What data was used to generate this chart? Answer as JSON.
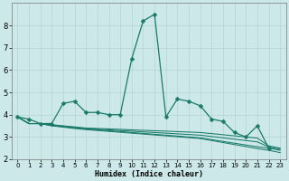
{
  "xlabel": "Humidex (Indice chaleur)",
  "x": [
    0,
    1,
    2,
    3,
    4,
    5,
    6,
    7,
    8,
    9,
    10,
    11,
    12,
    13,
    14,
    15,
    16,
    17,
    18,
    19,
    20,
    21,
    22,
    23
  ],
  "line_main": [
    3.9,
    3.8,
    3.6,
    3.6,
    4.5,
    4.6,
    4.1,
    4.1,
    4.0,
    4.0,
    6.5,
    8.2,
    8.5,
    3.9,
    4.7,
    4.6,
    4.4,
    3.8,
    3.7,
    3.2,
    3.0,
    3.5,
    2.5,
    null
  ],
  "line_flat1": [
    3.9,
    3.6,
    3.6,
    3.55,
    3.5,
    3.45,
    3.4,
    3.38,
    3.36,
    3.34,
    3.32,
    3.3,
    3.28,
    3.26,
    3.24,
    3.22,
    3.2,
    3.15,
    3.1,
    3.05,
    3.0,
    2.95,
    2.6,
    2.5
  ],
  "line_flat2": [
    3.9,
    3.6,
    3.6,
    3.53,
    3.48,
    3.43,
    3.38,
    3.35,
    3.32,
    3.29,
    3.26,
    3.23,
    3.2,
    3.17,
    3.14,
    3.11,
    3.08,
    3.02,
    2.96,
    2.9,
    2.84,
    2.78,
    2.55,
    2.45
  ],
  "line_flat3": [
    3.9,
    3.6,
    3.6,
    3.51,
    3.46,
    3.41,
    3.36,
    3.32,
    3.28,
    3.24,
    3.2,
    3.16,
    3.12,
    3.08,
    3.04,
    3.0,
    2.96,
    2.88,
    2.8,
    2.72,
    2.64,
    2.56,
    2.5,
    2.4
  ],
  "line_flat4": [
    3.9,
    3.6,
    3.6,
    3.5,
    3.44,
    3.38,
    3.33,
    3.29,
    3.25,
    3.21,
    3.17,
    3.13,
    3.09,
    3.05,
    3.01,
    2.97,
    2.93,
    2.84,
    2.75,
    2.66,
    2.57,
    2.48,
    2.4,
    2.3
  ],
  "bg_color": "#cce8e8",
  "grid_color": "#b8d8d8",
  "line_color": "#1a7a6a",
  "ylim": [
    2.0,
    9.0
  ],
  "xlim": [
    -0.5,
    23.5
  ],
  "yticks": [
    2,
    3,
    4,
    5,
    6,
    7,
    8
  ],
  "xticks": [
    0,
    1,
    2,
    3,
    4,
    5,
    6,
    7,
    8,
    9,
    10,
    11,
    12,
    13,
    14,
    15,
    16,
    17,
    18,
    19,
    20,
    21,
    22,
    23
  ]
}
